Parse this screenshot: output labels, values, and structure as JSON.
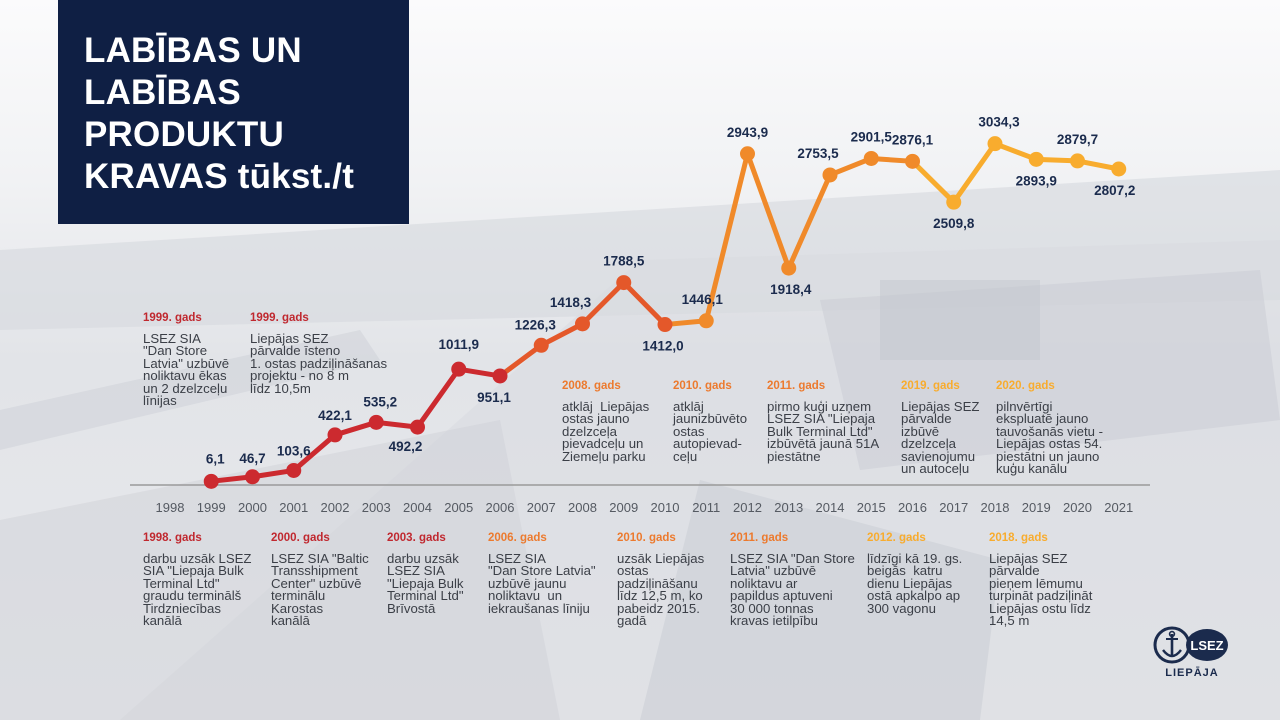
{
  "title_lines": [
    "LABĪBAS UN",
    "LABĪBAS",
    "PRODUKTU",
    "KRAVAS tūkst./t"
  ],
  "colors": {
    "title_bg": "#0f1f44",
    "series_red": "#cc2a2f",
    "series_orange_red": "#e4582a",
    "series_orange": "#f08a2a",
    "series_amber": "#f8ac2e",
    "value_label": "#1b2b4d",
    "axis": "#9a9a9a"
  },
  "chart_data": {
    "type": "line",
    "title": "LABĪBAS UN LABĪBAS PRODUKTU KRAVAS tūkst./t",
    "xlabel": "",
    "ylabel": "",
    "categories": [
      "1998",
      "1999",
      "2000",
      "2001",
      "2002",
      "2003",
      "2004",
      "2005",
      "2006",
      "2007",
      "2008",
      "2009",
      "2010",
      "2011",
      "2012",
      "2013",
      "2014",
      "2015",
      "2016",
      "2017",
      "2018",
      "2019",
      "2020",
      "2021"
    ],
    "x": [
      1999,
      2000,
      2001,
      2002,
      2003,
      2004,
      2005,
      2006,
      2007,
      2008,
      2009,
      2010,
      2011,
      2012,
      2013,
      2014,
      2015,
      2016,
      2017,
      2018,
      2019,
      2020,
      2021
    ],
    "values": [
      6.1,
      46.7,
      103.6,
      422.1,
      535.2,
      492.2,
      1011.9,
      951.1,
      1226.3,
      1418.3,
      1788.5,
      1412.0,
      1446.1,
      2943.9,
      1918.4,
      2753.5,
      2901.5,
      2876.1,
      2509.8,
      3034.3,
      2893.9,
      2879.7,
      2807.2
    ],
    "value_labels": [
      "6,1",
      "46,7",
      "103,6",
      "422,1",
      "535,2",
      "492,2",
      "1011,9",
      "951,1",
      "1226,3",
      "1418,3",
      "1788,5",
      "1412,0",
      "1446,1",
      "2943,9",
      "1918,4",
      "2753,5",
      "2901,5",
      "2876,1",
      "2509,8",
      "3034,3",
      "2893,9",
      "2879,7",
      "2807,2"
    ],
    "grid": false,
    "legend": "none"
  },
  "annotations_top": [
    {
      "year": "1999. gads",
      "text": "LSEZ SIA\n\"Dan Store\nLatvia\" uzbūvē\nnoliktavu ēkas\nun 2 dzelzceļu\nlīnijas",
      "color": "#c0282f"
    },
    {
      "year": "1999. gads",
      "text": "Liepājas SEZ\npārvalde īsteno\n1. ostas padziļināšanas\nprojektu - no 8 m\nlīdz 10,5m",
      "color": "#c0282f"
    },
    {
      "year": "2008. gads",
      "text": "atklāj  Liepājas\nostas jauno\ndzelzceļa\npievadceļu un\nZiemeļu parku",
      "color": "#ec7a2e"
    },
    {
      "year": "2010. gads",
      "text": "atklāj\njaunizbūvēto\nostas\nautopievad-\nceļu",
      "color": "#ec7a2e"
    },
    {
      "year": "2011. gads",
      "text": "pirmo kuģi uzņem\nLSEZ SIA \"Liepaja\nBulk Terminal Ltd\"\nizbūvētā jaunā 51A\npiestātne",
      "color": "#ec7a2e"
    },
    {
      "year": "2019. gads",
      "text": "Liepājas SEZ\npārvalde\nizbūvē\ndzelzceļa\nsavienojumu\nun autoceļu",
      "color": "#f8ac2e"
    },
    {
      "year": "2020. gads",
      "text": "pilnvērtīgi\nekspluatē jauno\ntauvošanās vietu -\nLiepājas ostas 54.\npiestātni un jauno\nkuģu kanālu",
      "color": "#f8ac2e"
    }
  ],
  "annotations_bottom": [
    {
      "year": "1998. gads",
      "text": "darbu uzsāk LSEZ\nSIA \"Liepaja Bulk\nTerminal Ltd\"\ngraudu terminālš\nTirdzniecības\nkanālā",
      "color": "#c0282f"
    },
    {
      "year": "2000. gads",
      "text": "LSEZ SIA \"Baltic\nTransshipment\nCenter\" uzbūvē\nterminālu\nKarostas\nkanālā",
      "color": "#c0282f"
    },
    {
      "year": "2003. gads",
      "text": "darbu uzsāk\nLSEZ SIA\n\"Liepaja Bulk\nTerminal Ltd\"\nBrīvostā",
      "color": "#c0282f"
    },
    {
      "year": "2006. gads",
      "text": "LSEZ SIA\n\"Dan Store Latvia\"\nuzbūvē jaunu\nnoliktavu  un\niekraušanas līniju",
      "color": "#ec7a2e"
    },
    {
      "year": "2010. gads",
      "text": "uzsāk Liepājas\nostas\npadziļināšanu\nlīdz 12,5 m, ko\npabeidz 2015.\ngadā",
      "color": "#ec7a2e"
    },
    {
      "year": "2011. gads",
      "text": "LSEZ SIA \"Dan Store\nLatvia\" uzbūvē\nnoliktavu ar\npapildus aptuveni\n30 000 tonnas\nkravas ietilpību",
      "color": "#ec7a2e"
    },
    {
      "year": "2012. gads",
      "text": "līdzīgi kā 19. gs.\nbeigās  katru\ndienu Liepājas\nostā apkalpo ap\n300 vagonu",
      "color": "#f8ac2e"
    },
    {
      "year": "2018. gads",
      "text": "Liepājas SEZ\npārvalde\npieņem lēmumu\nturpināt padziļināt\nLiepājas ostu līdz\n14,5 m",
      "color": "#f8ac2e"
    }
  ],
  "logo": {
    "badge": "LSEZ",
    "city": "LIEPĀJA",
    "icon": "anchor-icon"
  }
}
